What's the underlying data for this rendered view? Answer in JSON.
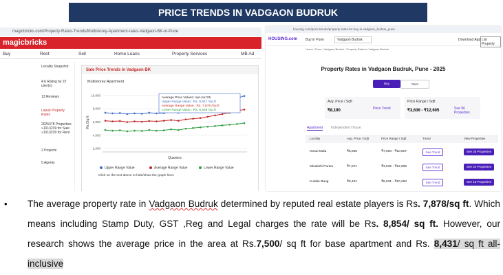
{
  "header": {
    "title": "PRICE TRENDS IN VADGAON BUDRUK"
  },
  "magicbricks": {
    "url": "magicbricks.com/Property-Rates-Trends/Multistorey-Apartment-rates-Vadgaon-BK-in-Pune",
    "logo": "magicbricks",
    "nav": [
      "Buy",
      "Rent",
      "Sell",
      "Home Loans",
      "Property Services",
      "MB Ad"
    ],
    "sidebar": [
      "Locality Snapshot",
      "4.6  Rating by 22 user(s)",
      "13 Reviews",
      "Latest Property Rates",
      "2026478 Properties »1013239 for Sale »1013239 for Rent",
      "2 Projects",
      "5 Agents"
    ],
    "panel_title": "Sale Price Trends in Vadgaon BK",
    "tab": "Multistorey Apartment",
    "chart_data": {
      "type": "line",
      "y_label": "Rs./Sq ft",
      "x_label": "Quarters",
      "ylim": [
        1500,
        10500
      ],
      "yticks": [
        {
          "value": 2000,
          "label": "2,000"
        },
        {
          "value": 4000,
          "label": "4,000"
        },
        {
          "value": 6000,
          "label": "6,000"
        },
        {
          "value": 8000,
          "label": "8,000"
        },
        {
          "value": 10000,
          "label": "10,000"
        }
      ],
      "grid": true,
      "series": [
        {
          "name": "Upper Range Value",
          "color": "#3b6cc7",
          "values": [
            7400,
            7300,
            7350,
            7200,
            7300,
            7250,
            7400,
            7300,
            7350,
            7500,
            7400,
            7600,
            7700,
            7800,
            8000,
            8300,
            8600,
            9000,
            9600,
            9917
          ]
        },
        {
          "name": "Average Range Value",
          "color": "#c62828",
          "values": [
            6200,
            6100,
            6150,
            6000,
            6100,
            6050,
            6150,
            6100,
            6200,
            6300,
            6200,
            6400,
            6500,
            6600,
            6800,
            7000,
            7200,
            7400,
            7700,
            7878
          ]
        },
        {
          "name": "Lower Range Value",
          "color": "#2e9e3e",
          "values": [
            4800,
            4700,
            4750,
            4600,
            4700,
            4650,
            4800,
            4700,
            4750,
            4900,
            4800,
            5000,
            5100,
            5200,
            5300,
            5400,
            5500,
            5600,
            5700,
            5835
          ]
        }
      ],
      "tooltip": [
        "Average Price Values: Apr-Jun'25",
        "Upper Range Value : Rs. 9,917 /Sq ft",
        "Average Range Value : Rs. 7,878 /Sq ft",
        "Lower Range Value : Rs. 5,835 /Sq ft"
      ],
      "note": "Click on the text above to hide/show the graph lines"
    }
  },
  "housing": {
    "url": "housing.com/price-trends/property-rates-for-buy-in-vadgaon_budruk_pune",
    "logo": "HOUSING.com",
    "city": "Buy in Pune",
    "search": "Vadgaon Budruk",
    "actions": [
      "Download App",
      "List Property"
    ],
    "breadcrumb": "Home / Pune / Vadgaon Budruk / Property Rates in Vadgaon Budruk",
    "title": "Property Rates in Vadgaon Budruk, Pune - 2025",
    "tabs": [
      "Buy",
      "Rent"
    ],
    "avg_label": "Avg. Price / Sqft",
    "avg_value": "₹8,190",
    "trend_link": "Price Trend",
    "range_label": "Price Range / Sqft",
    "range_value": "₹3,636 - ₹12,605",
    "see_link": "See 96 Properties",
    "type_tabs": [
      "Apartment",
      "Independent House"
    ],
    "table": {
      "headers": [
        "Locality",
        "Avg. Price / Sqft",
        "Price Range / Sqft",
        "Trend",
        "View Properties"
      ],
      "rows": [
        [
          "Gosai Mala",
          "₹8,980",
          "₹7,000 - ₹10,807",
          "See Trend",
          "See 36 Properties"
        ],
        [
          "Minakshi Puram",
          "₹7,871",
          "₹3,636 - ₹12,605",
          "See Trend",
          "See 24 Properties"
        ],
        [
          "Kudale Baug",
          "₹8,491",
          "₹6,631 - ₹10,263",
          "See Trend",
          "See 18 Properties"
        ]
      ]
    }
  },
  "body": {
    "bullet": "•",
    "segments": [
      {
        "text": "The average property rate in "
      },
      {
        "text": "Vadgaon Budruk",
        "spell": true
      },
      {
        "text": " determined by reputed real estate players is Rs"
      },
      {
        "text": ". 7,878/sq ft",
        "bold": true
      },
      {
        "text": ". Which means including Stamp Duty, GST ,Reg and Legal charges  the rate will be Rs"
      },
      {
        "text": ". 8,854/ sq ft.",
        "bold": true
      },
      {
        "text": " However, our research shows the average price in the area at Rs."
      },
      {
        "text": "7,500",
        "bold": true
      },
      {
        "text": "/ sq ft for base apartment and Rs. "
      },
      {
        "text": "8,431",
        "bold": true,
        "highlight": true
      },
      {
        "text": "/ sq ft all-inclusive",
        "highlight": true
      }
    ]
  }
}
